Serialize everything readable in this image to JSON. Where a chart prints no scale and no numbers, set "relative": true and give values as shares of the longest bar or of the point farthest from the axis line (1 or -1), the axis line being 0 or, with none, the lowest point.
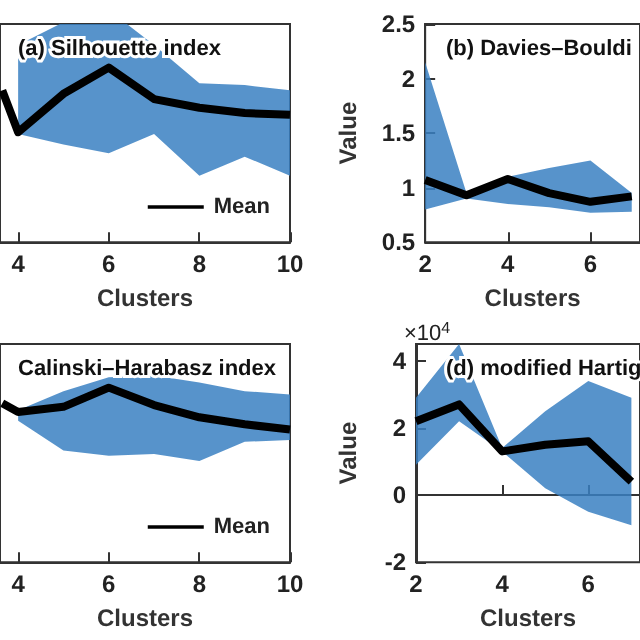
{
  "chart_data": [
    {
      "type": "line",
      "title": "(a) Silhouette index",
      "xlabel": "Clusters",
      "relative": true,
      "tick_labels": "x",
      "legend": "bottom right",
      "xlim": [
        3.6,
        10
      ],
      "xticks": [
        4,
        6,
        8,
        10
      ],
      "x": [
        3.65,
        4,
        5,
        6,
        7,
        8,
        9,
        10
      ],
      "series": [
        {
          "name": "Mean",
          "color": "#000000",
          "values": [
            0.87,
            0.63,
            0.85,
            1,
            0.82,
            0.77,
            0.74,
            0.73
          ],
          "lower": [
            null,
            0.62,
            0.56,
            0.51,
            0.62,
            0.38,
            0.49,
            0.38
          ],
          "upper": [
            null,
            1.13,
            1.26,
            1.33,
            1.13,
            0.91,
            0.9,
            0.87
          ]
        }
      ]
    },
    {
      "type": "line",
      "title": "(b) Davies–Bouldi",
      "xlabel": "Clusters",
      "ylabel": "Value",
      "xlim": [
        2,
        7.2
      ],
      "xticks": [
        2,
        4,
        6
      ],
      "ylim": [
        0.5,
        2.5
      ],
      "yticks": [
        0.5,
        1,
        1.5,
        2,
        2.5
      ],
      "x": [
        2,
        3,
        4,
        5,
        6,
        7
      ],
      "series": [
        {
          "color": "#000000",
          "values": [
            1.07,
            0.93,
            1.08,
            0.95,
            0.87,
            0.92
          ],
          "lower": [
            0.8,
            0.9,
            0.85,
            0.82,
            0.77,
            0.78
          ],
          "upper": [
            2.15,
            0.95,
            1.1,
            1.18,
            1.25,
            0.95
          ]
        }
      ]
    },
    {
      "type": "line",
      "title": "Calinski–Harabasz index",
      "xlabel": "Clusters",
      "relative": true,
      "tick_labels": "x",
      "legend": "bottom right",
      "xlim": [
        3.6,
        10
      ],
      "xticks": [
        4,
        6,
        8,
        10
      ],
      "x": [
        3.65,
        4,
        5,
        6,
        7,
        8,
        9,
        10
      ],
      "series": [
        {
          "name": "Mean",
          "color": "#000000",
          "values": [
            0.91,
            0.86,
            0.89,
            1,
            0.9,
            0.83,
            0.79,
            0.76
          ],
          "lower": [
            null,
            0.81,
            0.64,
            0.61,
            0.62,
            0.58,
            0.69,
            0.7
          ],
          "upper": [
            null,
            0.87,
            0.98,
            1.06,
            1.07,
            1.03,
            0.98,
            0.96
          ]
        }
      ]
    },
    {
      "type": "line",
      "title": "(d) modified Hartig",
      "xlabel": "Clusters",
      "ylabel": "Value",
      "annotations": [
        "×10$^{4}$"
      ],
      "xlim": [
        2,
        7.2
      ],
      "xticks": [
        2,
        4,
        6
      ],
      "ylim": [
        -2,
        4.5
      ],
      "yticks": [
        -2,
        0,
        2,
        4
      ],
      "x": [
        2,
        3,
        4,
        5,
        6,
        7
      ],
      "series": [
        {
          "color": "#000000",
          "values": [
            2.2,
            2.7,
            1.3,
            1.5,
            1.6,
            0.4
          ],
          "lower": [
            0.9,
            2.2,
            1.3,
            0.2,
            -0.5,
            -0.9
          ],
          "upper": [
            2.9,
            4.5,
            1.4,
            2.5,
            3.4,
            2.9
          ]
        }
      ]
    }
  ]
}
